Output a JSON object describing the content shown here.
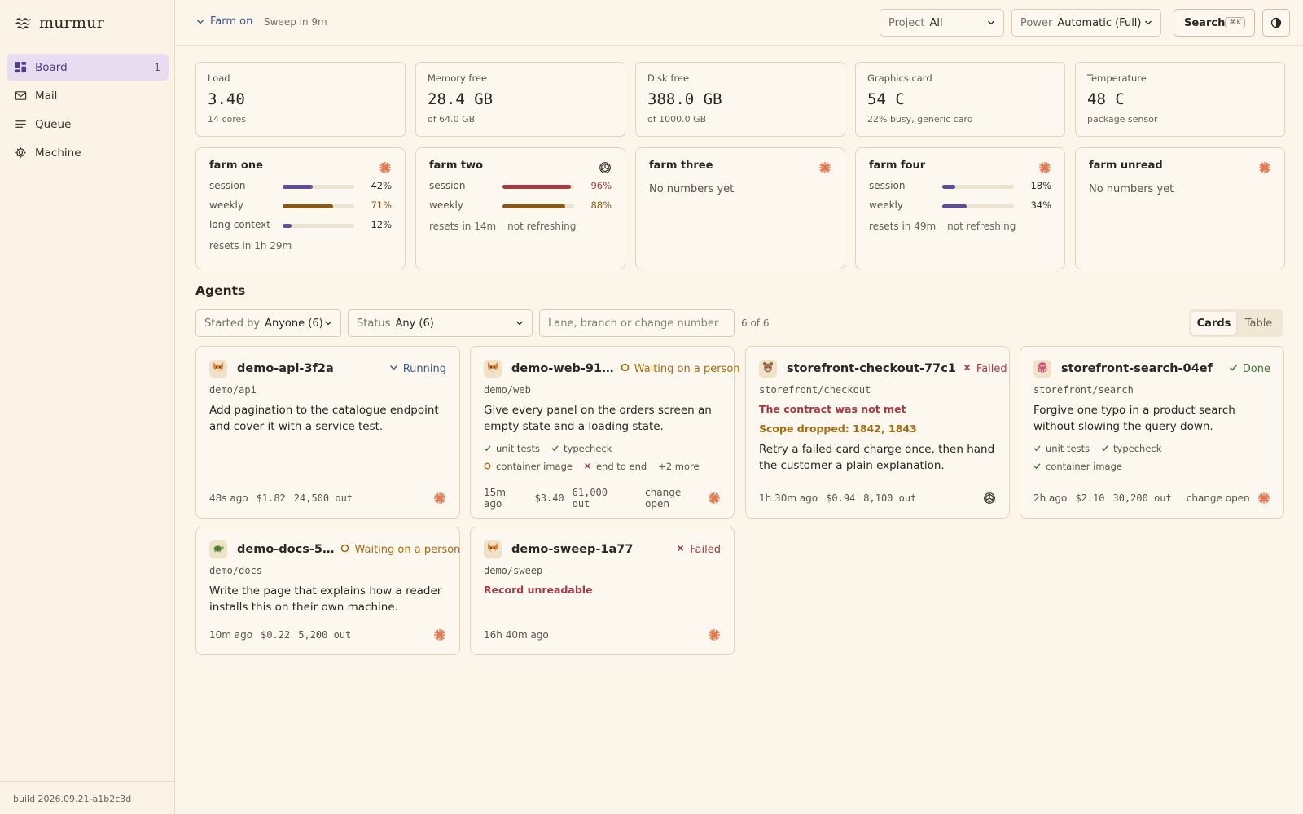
{
  "app": {
    "name": "murmur",
    "build": "build 2026.09.21-a1b2c3d"
  },
  "sidebar": {
    "items": [
      {
        "label": "Board",
        "count": "1",
        "icon": "grid-icon",
        "active": true
      },
      {
        "label": "Mail",
        "icon": "mail-icon"
      },
      {
        "label": "Queue",
        "icon": "list-icon"
      },
      {
        "label": "Machine",
        "icon": "gear-icon"
      }
    ]
  },
  "topbar": {
    "farm_label": "Farm on",
    "sweep": "Sweep in 9m",
    "project": {
      "label": "Project",
      "value": "All"
    },
    "power": {
      "label": "Power",
      "value": "Automatic (Full)"
    },
    "search_label": "Search",
    "search_kbd": "⌘K"
  },
  "stats": [
    {
      "title": "Load",
      "value": "3.40",
      "sub": "14 cores"
    },
    {
      "title": "Memory free",
      "value": "28.4 GB",
      "sub": "of 64.0 GB"
    },
    {
      "title": "Disk free",
      "value": "388.0 GB",
      "sub": "of 1000.0 GB"
    },
    {
      "title": "Graphics card",
      "value": "54 C",
      "sub": "22% busy, generic card"
    },
    {
      "title": "Temperature",
      "value": "48 C",
      "sub": "package sensor"
    }
  ],
  "farms": [
    {
      "name": "farm one",
      "icon": "sunburst-icon",
      "meters": [
        {
          "label": "session",
          "pct": "42%",
          "value": 0.42,
          "color": "#5c4f98",
          "pct_color": "#2c2720"
        },
        {
          "label": "weekly",
          "pct": "71%",
          "value": 0.71,
          "color": "#8a5a12",
          "pct_color": "#8a5a12"
        },
        {
          "label": "long context",
          "pct": "12%",
          "value": 0.12,
          "color": "#5c4f98",
          "pct_color": "#2c2720"
        }
      ],
      "foot": [
        "resets in 1h 29m"
      ]
    },
    {
      "name": "farm two",
      "icon": "knot-icon",
      "meters": [
        {
          "label": "session",
          "pct": "96%",
          "value": 0.96,
          "color": "#a83a42",
          "pct_color": "#a83a42"
        },
        {
          "label": "weekly",
          "pct": "88%",
          "value": 0.88,
          "color": "#8a5a12",
          "pct_color": "#8a5a12"
        }
      ],
      "foot": [
        "resets in 14m",
        "not refreshing"
      ]
    },
    {
      "name": "farm three",
      "icon": "sunburst-icon",
      "none": "No numbers yet"
    },
    {
      "name": "farm four",
      "icon": "sunburst-icon",
      "meters": [
        {
          "label": "session",
          "pct": "18%",
          "value": 0.18,
          "color": "#5c4f98",
          "pct_color": "#2c2720"
        },
        {
          "label": "weekly",
          "pct": "34%",
          "value": 0.34,
          "color": "#5c4f98",
          "pct_color": "#2c2720"
        }
      ],
      "foot": [
        "resets in 49m",
        "not refreshing"
      ]
    },
    {
      "name": "farm unread",
      "icon": "sunburst-icon",
      "none": "No numbers yet"
    }
  ],
  "agents_section": {
    "title": "Agents",
    "started_by": {
      "label": "Started by",
      "value": "Anyone (6)"
    },
    "status_filter": {
      "label": "Status",
      "value": "Any (6)"
    },
    "search_placeholder": "Lane, branch or change number",
    "count": "6 of 6",
    "view": {
      "cards": "Cards",
      "table": "Table"
    }
  },
  "agents": [
    {
      "name": "demo-api-3f2a",
      "avatar": "fox-icon",
      "status": "Running",
      "status_kind": "running",
      "repo": "demo/api",
      "desc": "Add pagination to the catalogue endpoint and cover it with a service test.",
      "age": "48s ago",
      "cost": "$1.82",
      "out": "24,500 out",
      "change": "",
      "runner": "sunburst-icon"
    },
    {
      "name": "demo-web-91…",
      "avatar": "fox-icon",
      "status": "Waiting on a person",
      "status_kind": "waiting",
      "repo": "demo/web",
      "desc": "Give every panel on the orders screen an empty state and a loading state.",
      "checks": [
        {
          "label": "unit tests",
          "state": "pass"
        },
        {
          "label": "typecheck",
          "state": "pass"
        },
        {
          "label": "container image",
          "state": "pending"
        },
        {
          "label": "end to end",
          "state": "fail"
        }
      ],
      "more": "+2 more",
      "age": "15m ago",
      "cost": "$3.40",
      "out": "61,000 out",
      "change": "change open",
      "runner": "sunburst-icon"
    },
    {
      "name": "storefront-checkout-77c1",
      "avatar": "bear-icon",
      "status": "Failed",
      "status_kind": "failed",
      "repo": "storefront/checkout",
      "error": "The contract was not met",
      "warning": "Scope dropped: 1842, 1843",
      "desc": "Retry a failed card charge once, then hand the customer a plain explanation.",
      "age": "1h 30m ago",
      "cost": "$0.94",
      "out": "8,100 out",
      "change": "",
      "runner": "knot-icon"
    },
    {
      "name": "storefront-search-04ef",
      "avatar": "octopus-icon",
      "status": "Done",
      "status_kind": "done",
      "repo": "storefront/search",
      "desc": "Forgive one typo in a product search without slowing the query down.",
      "checks": [
        {
          "label": "unit tests",
          "state": "pass"
        },
        {
          "label": "typecheck",
          "state": "pass"
        },
        {
          "label": "container image",
          "state": "pass"
        }
      ],
      "age": "2h ago",
      "cost": "$2.10",
      "out": "30,200 out",
      "change": "change open",
      "runner": "sunburst-icon"
    },
    {
      "name": "demo-docs-5…",
      "avatar": "turtle-icon",
      "status": "Waiting on a person",
      "status_kind": "waiting",
      "repo": "demo/docs",
      "desc": "Write the page that explains how a reader installs this on their own machine.",
      "age": "10m ago",
      "cost": "$0.22",
      "out": "5,200 out",
      "change": "",
      "runner": "sunburst-icon"
    },
    {
      "name": "demo-sweep-1a77",
      "avatar": "fox-icon",
      "status": "Failed",
      "status_kind": "failed",
      "repo": "demo/sweep",
      "error": "Record unreadable",
      "age": "16h 40m ago",
      "cost": "",
      "out": "",
      "change": "",
      "runner": "sunburst-icon"
    }
  ],
  "colors": {
    "accent": "#5c4f98",
    "active_bg": "#e7dcf0",
    "background": "#fcf6ea",
    "sunburst": "#e07a52"
  }
}
